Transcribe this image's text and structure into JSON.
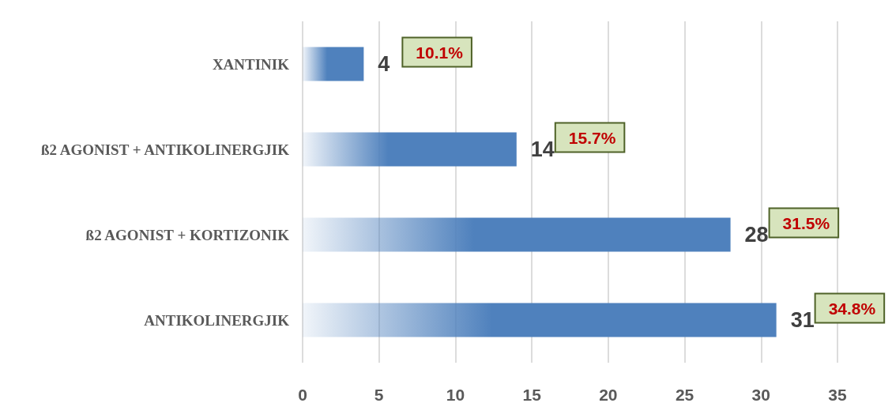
{
  "chart_data": {
    "type": "bar",
    "orientation": "horizontal",
    "categories": [
      "XANTINIK",
      "ß2 AGONIST + ANTIKOLINERGJIK",
      "ß2 AGONIST + KORTIZONIK",
      "ANTIKOLINERGJIK"
    ],
    "values": [
      4,
      14,
      28,
      31
    ],
    "color": "#4f81bd",
    "xlim": [
      0,
      35
    ],
    "xticks": [
      0,
      5,
      10,
      15,
      20,
      25,
      30,
      35
    ],
    "grid": "x",
    "data_labels": true,
    "annotations": [
      "10.1%",
      "15.7%",
      "31.5%",
      "34.8%"
    ]
  }
}
